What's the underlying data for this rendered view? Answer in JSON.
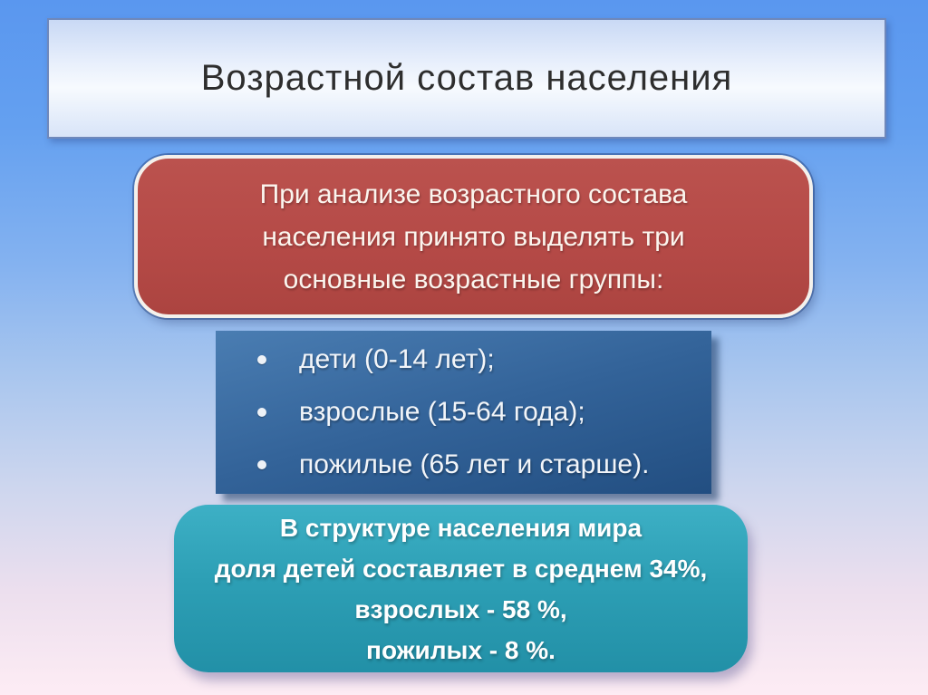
{
  "slide": {
    "title": "Возрастной состав населения",
    "intro_box": {
      "lines": [
        "При анализе возрастного состава",
        "населения принято выделять три",
        "основные возрастные группы:"
      ]
    },
    "groups_box": {
      "items": [
        "дети (0-14 лет);",
        "взрослые (15-64 года);",
        "пожилые (65 лет и старше)."
      ]
    },
    "stats_box": {
      "lines": [
        "В структуре населения мира",
        "доля детей составляет в среднем 34%,",
        "взрослых - 58 %,",
        "пожилых - 8 %."
      ]
    },
    "colors": {
      "background_top": "#5a97ef",
      "background_bottom": "#fdecf4",
      "title_box_fill": "#e9f0fc",
      "title_box_border": "#6f88bb",
      "intro_box_fill": "#b54a47",
      "intro_box_border": "#f4f1ec",
      "groups_box_fill": "#2f6096",
      "stats_box_fill": "#2d9fb5",
      "text_light": "#ffffff",
      "title_text": "#2e2e2e"
    }
  }
}
